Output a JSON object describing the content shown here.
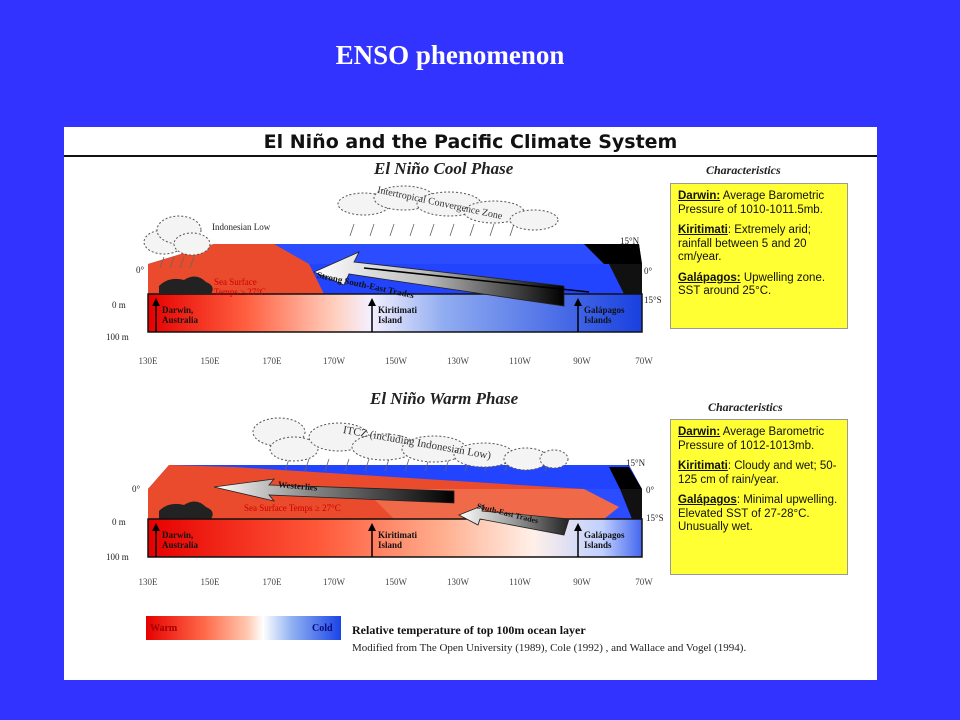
{
  "slide_title": "ENSO phenomenon",
  "figure": {
    "title": "El Niño and the Pacific Climate System",
    "depth_labels": [
      "0 m",
      "100 m"
    ],
    "lat_labels": [
      "0°",
      "15°N",
      "0°",
      "15°S"
    ],
    "lon_ticks": [
      "130E",
      "150E",
      "170E",
      "170W",
      "150W",
      "130W",
      "110W",
      "90W",
      "70W"
    ],
    "cool": {
      "title": "El Niño Cool Phase",
      "characteristics_title": "Characteristics",
      "cloud_label": "Intertropical Convergence Zone",
      "low_label": "Indonesian Low",
      "trades_label": "Strong South-East Trades",
      "sst_label_line1": "Sea Surface",
      "sst_label_line2": "Temps ≥ 27°C",
      "locations": {
        "darwin": [
          "Darwin,",
          "Australia"
        ],
        "kiritimati": [
          "Kiritimati",
          "Island"
        ],
        "galapagos": [
          "Galápagos",
          "Islands"
        ]
      },
      "characteristics": [
        {
          "name": "Darwin:",
          "text": "Average Barometric Pressure of 1010-1011.5mb."
        },
        {
          "name": "Kiritimati",
          "text": ": Extremely arid; rainfall between 5 and 20 cm/year."
        },
        {
          "name": "Galápagos:",
          "text": "Upwelling zone. SST around 25°C."
        }
      ]
    },
    "warm": {
      "title": "El Niño Warm Phase",
      "characteristics_title": "Characteristics",
      "cloud_label": "ITCZ (including Indonesian Low)",
      "westerlies_label": "Westerlies",
      "trades_label": "South-East Trades",
      "sst_label": "Sea Surface Temps ≥ 27°C",
      "locations": {
        "darwin": [
          "Darwin,",
          "Australia"
        ],
        "kiritimati": [
          "Kiritimati",
          "Island"
        ],
        "galapagos": [
          "Galápagos",
          "Islands"
        ]
      },
      "characteristics": [
        {
          "name": "Darwin:",
          "text": "Average Barometric Pressure of 1012-1013mb."
        },
        {
          "name": "Kiritimati",
          "text": ": Cloudy and wet; 50-125 cm of rain/year."
        },
        {
          "name": "Galápagos",
          "text": ": Minimal upwelling. Elevated SST of 27-28°C. Unusually wet."
        }
      ]
    },
    "legend": {
      "warm": "Warm",
      "cold": "Cold",
      "label": "Relative temperature of top 100m ocean layer"
    },
    "source": "Modified from The Open University (1989), Cole (1992) , and Wallace and Vogel (1994).",
    "colors": {
      "background": "#3333ff",
      "warm": "#e60000",
      "cold": "#1a44e6",
      "char_box": "#ffff33"
    }
  }
}
